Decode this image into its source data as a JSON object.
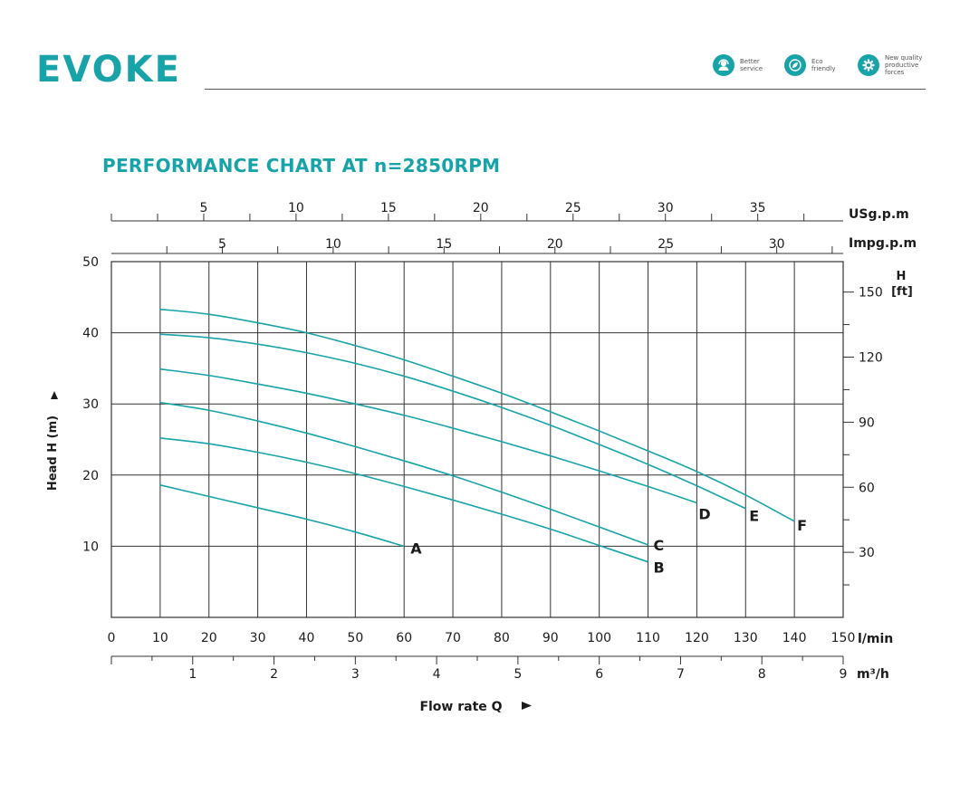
{
  "brand": {
    "logo": "EVOKE",
    "badges": [
      {
        "icon": "headset-icon",
        "text": "Better\nservice"
      },
      {
        "icon": "leaf-globe-icon",
        "text": "Eco\nfriendly"
      },
      {
        "icon": "gear-icon",
        "text": "New quality\nproductive\nforces"
      }
    ]
  },
  "colors": {
    "accent": "#17a3a8",
    "grid": "#333333",
    "curve": "#17a3a8"
  },
  "chart_data": {
    "type": "line",
    "title": "PERFORMANCE CHART AT n=2850RPM",
    "xlabel": "Flow rate Q",
    "ylabel": "Head H (m)",
    "right_axis_label": [
      "H",
      "[ft]"
    ],
    "x_unit": "l/min",
    "xlim": [
      0,
      150
    ],
    "ylim": [
      0,
      50
    ],
    "x_ticks": [
      0,
      10,
      20,
      30,
      40,
      50,
      60,
      70,
      80,
      90,
      100,
      110,
      120,
      130,
      140,
      150
    ],
    "y_ticks": [
      10,
      20,
      30,
      40,
      50
    ],
    "grid": true,
    "secondary_axes": {
      "m3h": {
        "unit": "m³/h",
        "ticks": [
          1,
          2,
          3,
          4,
          5,
          6,
          7,
          8,
          9
        ]
      },
      "ft": {
        "ticks": [
          30,
          60,
          90,
          120,
          150
        ]
      },
      "usgpm": {
        "unit": "USg.p.m",
        "ticks": [
          5,
          10,
          15,
          20,
          25,
          30,
          35
        ]
      },
      "impgpm": {
        "unit": "Impg.p.m",
        "ticks": [
          5,
          10,
          15,
          20,
          25,
          30
        ]
      }
    },
    "series": [
      {
        "name": "A",
        "x": [
          10,
          20,
          30,
          40,
          50,
          60
        ],
        "y": [
          18.6,
          17.0,
          15.4,
          13.8,
          12.0,
          10.0
        ]
      },
      {
        "name": "B",
        "x": [
          10,
          20,
          30,
          40,
          50,
          60,
          70,
          80,
          90,
          100,
          110
        ],
        "y": [
          25.2,
          24.4,
          23.2,
          21.8,
          20.2,
          18.4,
          16.5,
          14.5,
          12.4,
          10.1,
          7.8
        ]
      },
      {
        "name": "C",
        "x": [
          10,
          20,
          30,
          40,
          50,
          60,
          70,
          80,
          90,
          100,
          110
        ],
        "y": [
          30.2,
          29.1,
          27.6,
          25.9,
          24.0,
          22.0,
          19.9,
          17.6,
          15.2,
          12.7,
          10.2
        ]
      },
      {
        "name": "D",
        "x": [
          10,
          20,
          30,
          40,
          50,
          60,
          70,
          80,
          90,
          100,
          110,
          120
        ],
        "y": [
          34.9,
          34.0,
          32.8,
          31.5,
          30.0,
          28.4,
          26.6,
          24.7,
          22.7,
          20.6,
          18.4,
          16.1
        ]
      },
      {
        "name": "E",
        "x": [
          10,
          20,
          30,
          40,
          50,
          60,
          70,
          80,
          90,
          100,
          110,
          120,
          130
        ],
        "y": [
          39.8,
          39.3,
          38.4,
          37.2,
          35.7,
          33.9,
          31.8,
          29.5,
          27.0,
          24.3,
          21.5,
          18.5,
          15.3
        ]
      },
      {
        "name": "F",
        "x": [
          10,
          20,
          30,
          40,
          50,
          60,
          70,
          80,
          90,
          100,
          110,
          120,
          130,
          140
        ],
        "y": [
          43.3,
          42.6,
          41.4,
          40.0,
          38.2,
          36.2,
          33.9,
          31.5,
          28.9,
          26.2,
          23.4,
          20.5,
          17.2,
          13.5
        ]
      }
    ]
  }
}
